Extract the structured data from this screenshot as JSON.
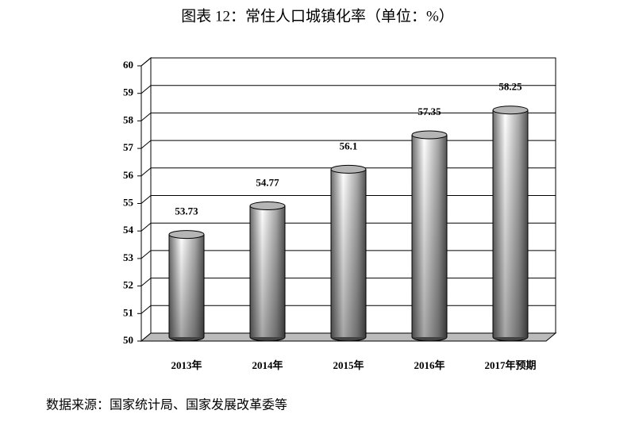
{
  "chart_data": {
    "type": "bar",
    "title": "图表 12：常住人口城镇化率（单位：%）",
    "categories": [
      "2013年",
      "2014年",
      "2015年",
      "2016年",
      "2017年预期"
    ],
    "values": [
      53.73,
      54.77,
      56.1,
      57.35,
      58.25
    ],
    "ylim": [
      50,
      60
    ],
    "yticks": [
      50,
      51,
      52,
      53,
      54,
      55,
      56,
      57,
      58,
      59,
      60
    ],
    "grid": true,
    "source": "数据来源：国家统计局、国家发展改革委等"
  }
}
